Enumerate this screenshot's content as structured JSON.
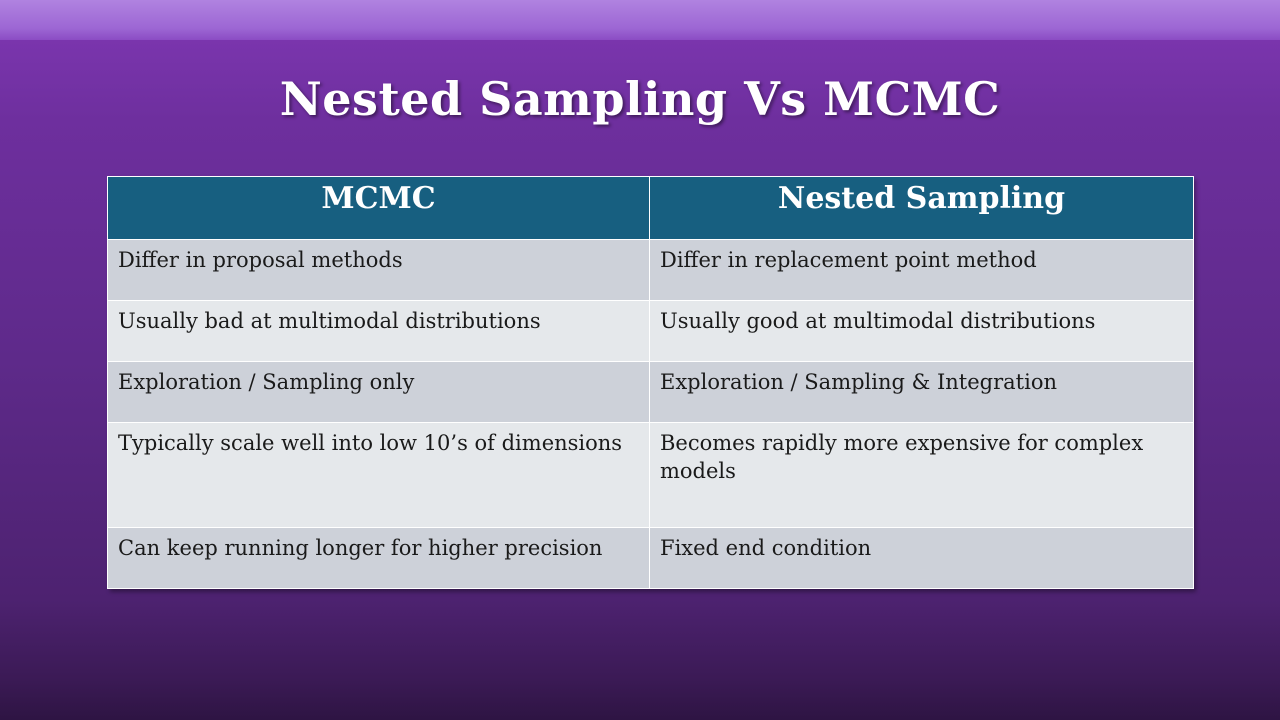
{
  "slide": {
    "title": "Nested Sampling Vs MCMC"
  },
  "table": {
    "headers": [
      "MCMC",
      "Nested Sampling"
    ],
    "rows": [
      [
        "Differ in proposal methods",
        "Differ in replacement point method"
      ],
      [
        "Usually bad at multimodal distributions",
        "Usually good at multimodal distributions"
      ],
      [
        "Exploration / Sampling only",
        "Exploration / Sampling & Integration"
      ],
      [
        "Typically scale well into low 10’s of dimensions",
        "Becomes rapidly more expensive for complex models"
      ],
      [
        "Can keep running longer for higher precision",
        "Fixed end condition"
      ]
    ]
  },
  "colors": {
    "header_bg": "#175f80",
    "row_dark": "#cdd1d9",
    "row_light": "#e5e8eb",
    "background": "#6e2f9e"
  }
}
